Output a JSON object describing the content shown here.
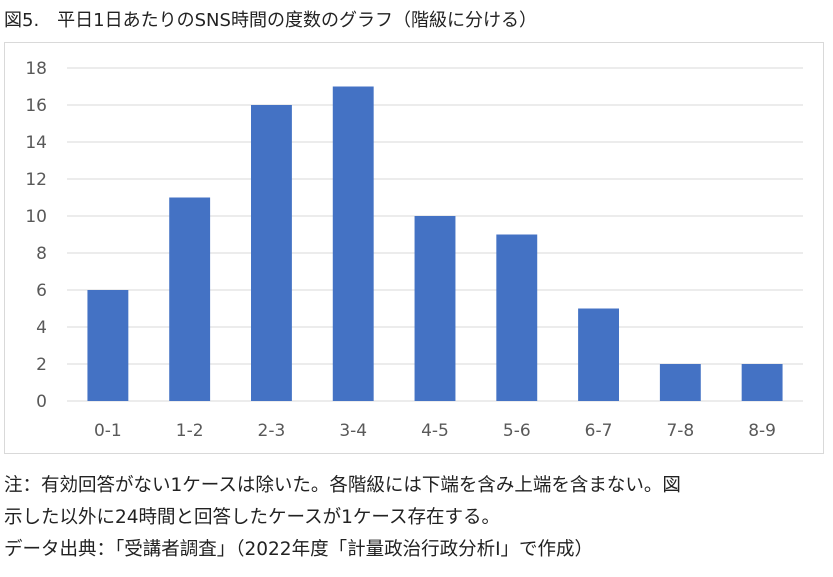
{
  "caption": "図5.　平日1日あたりのSNS時間の度数のグラフ（階級に分ける）",
  "notes": [
    "注：有効回答がない1ケースは除いた。各階級には下端を含み上端を含まない。図",
    "示した以外に24時間と回答したケースが1ケース存在する。",
    "データ出典：「受講者調査」（2022年度「計量政治行政分析Ⅰ」で作成）"
  ],
  "colors": {
    "bar": "#4472c4",
    "grid": "#d9d9d9",
    "tick": "#595959"
  },
  "chart_data": {
    "type": "bar",
    "categories": [
      "0-1",
      "1-2",
      "2-3",
      "3-4",
      "4-5",
      "5-6",
      "6-7",
      "7-8",
      "8-9"
    ],
    "values": [
      6,
      11,
      16,
      17,
      10,
      9,
      5,
      2,
      2
    ],
    "title": "",
    "xlabel": "",
    "ylabel": "",
    "ylim": [
      0,
      18
    ],
    "yticks": [
      0,
      2,
      4,
      6,
      8,
      10,
      12,
      14,
      16,
      18
    ],
    "grid": true,
    "legend": "none"
  }
}
